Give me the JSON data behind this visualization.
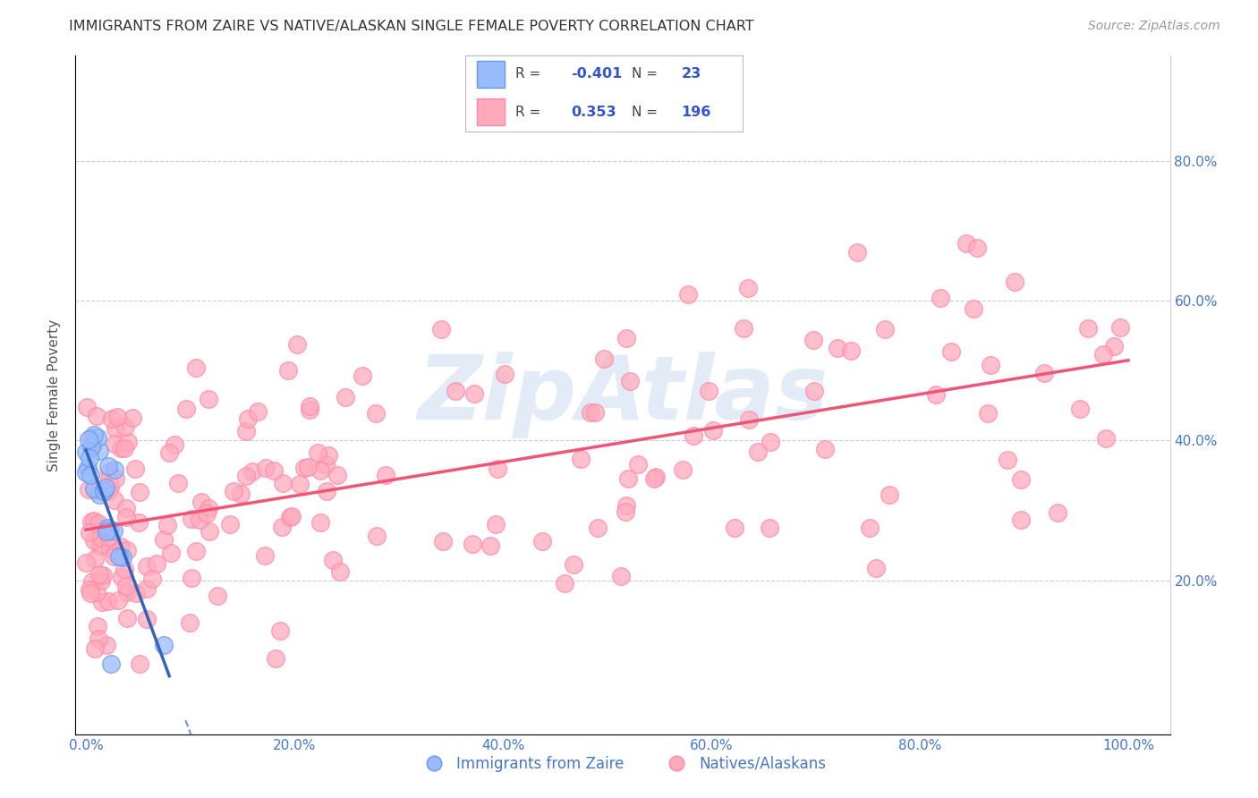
{
  "title": "IMMIGRANTS FROM ZAIRE VS NATIVE/ALASKAN SINGLE FEMALE POVERTY CORRELATION CHART",
  "source_text": "Source: ZipAtlas.com",
  "ylabel": "Single Female Poverty",
  "x_tick_labels": [
    "0.0%",
    "20.0%",
    "40.0%",
    "60.0%",
    "80.0%",
    "100.0%"
  ],
  "x_tick_values": [
    0.0,
    0.2,
    0.4,
    0.6,
    0.8,
    1.0
  ],
  "y_tick_labels": [
    "20.0%",
    "40.0%",
    "60.0%",
    "80.0%"
  ],
  "y_tick_values": [
    0.2,
    0.4,
    0.6,
    0.8
  ],
  "xlim": [
    -0.01,
    1.04
  ],
  "ylim": [
    -0.02,
    0.95
  ],
  "legend1_r": "-0.401",
  "legend1_n": "23",
  "legend2_r": "0.353",
  "legend2_n": "196",
  "blue_color": "#99BBFF",
  "blue_edge_color": "#6699EE",
  "pink_color": "#FFAABB",
  "pink_edge_color": "#FF88AA",
  "blue_line_color": "#3366BB",
  "pink_line_color": "#EE5577",
  "watermark": "ZipAtlas",
  "watermark_color": "#CCDDEEBB",
  "background_color": "#FFFFFF",
  "grid_color": "#CCCCCC",
  "title_color": "#333333",
  "source_color": "#999999",
  "tick_color_blue": "#4477CC",
  "legend_r_color": "#3355CC",
  "legend_label_color": "#333333",
  "blue_scatter_seed": 10,
  "pink_scatter_seed": 20
}
